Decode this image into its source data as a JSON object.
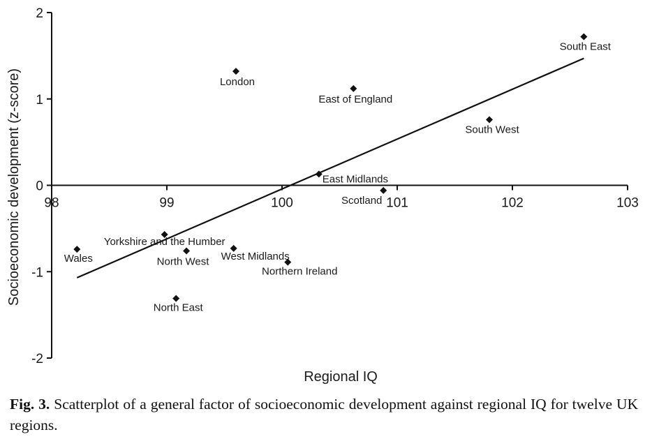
{
  "chart_data": {
    "type": "scatter",
    "xlabel": "Regional IQ",
    "ylabel": "Socioeconomic development (z-score)",
    "xlim": [
      98,
      103
    ],
    "ylim": [
      -2,
      2
    ],
    "x_ticks": [
      98,
      99,
      100,
      101,
      102,
      103
    ],
    "y_ticks": [
      -2,
      -1,
      0,
      1,
      2
    ],
    "points": [
      {
        "label": "South East",
        "x": 102.62,
        "y": 1.72
      },
      {
        "label": "London",
        "x": 99.6,
        "y": 1.32
      },
      {
        "label": "East of England",
        "x": 100.62,
        "y": 1.12
      },
      {
        "label": "South West",
        "x": 101.8,
        "y": 0.76
      },
      {
        "label": "East Midlands",
        "x": 100.32,
        "y": 0.13
      },
      {
        "label": "Scotland",
        "x": 100.88,
        "y": -0.06
      },
      {
        "label": "Yorkshire and the Humber",
        "x": 98.98,
        "y": -0.57
      },
      {
        "label": "North West",
        "x": 99.17,
        "y": -0.76
      },
      {
        "label": "West Midlands",
        "x": 99.58,
        "y": -0.73
      },
      {
        "label": "Northern Ireland",
        "x": 100.05,
        "y": -0.89
      },
      {
        "label": "Wales",
        "x": 98.22,
        "y": -0.74
      },
      {
        "label": "North East",
        "x": 99.08,
        "y": -1.31
      }
    ],
    "fit_line": {
      "x": [
        98.22,
        102.62
      ],
      "y": [
        -1.07,
        1.47
      ]
    }
  },
  "caption": {
    "label": "Fig. 3.",
    "text": "Scatterplot of a general factor of socioeconomic development against regional IQ for twelve UK regions."
  }
}
